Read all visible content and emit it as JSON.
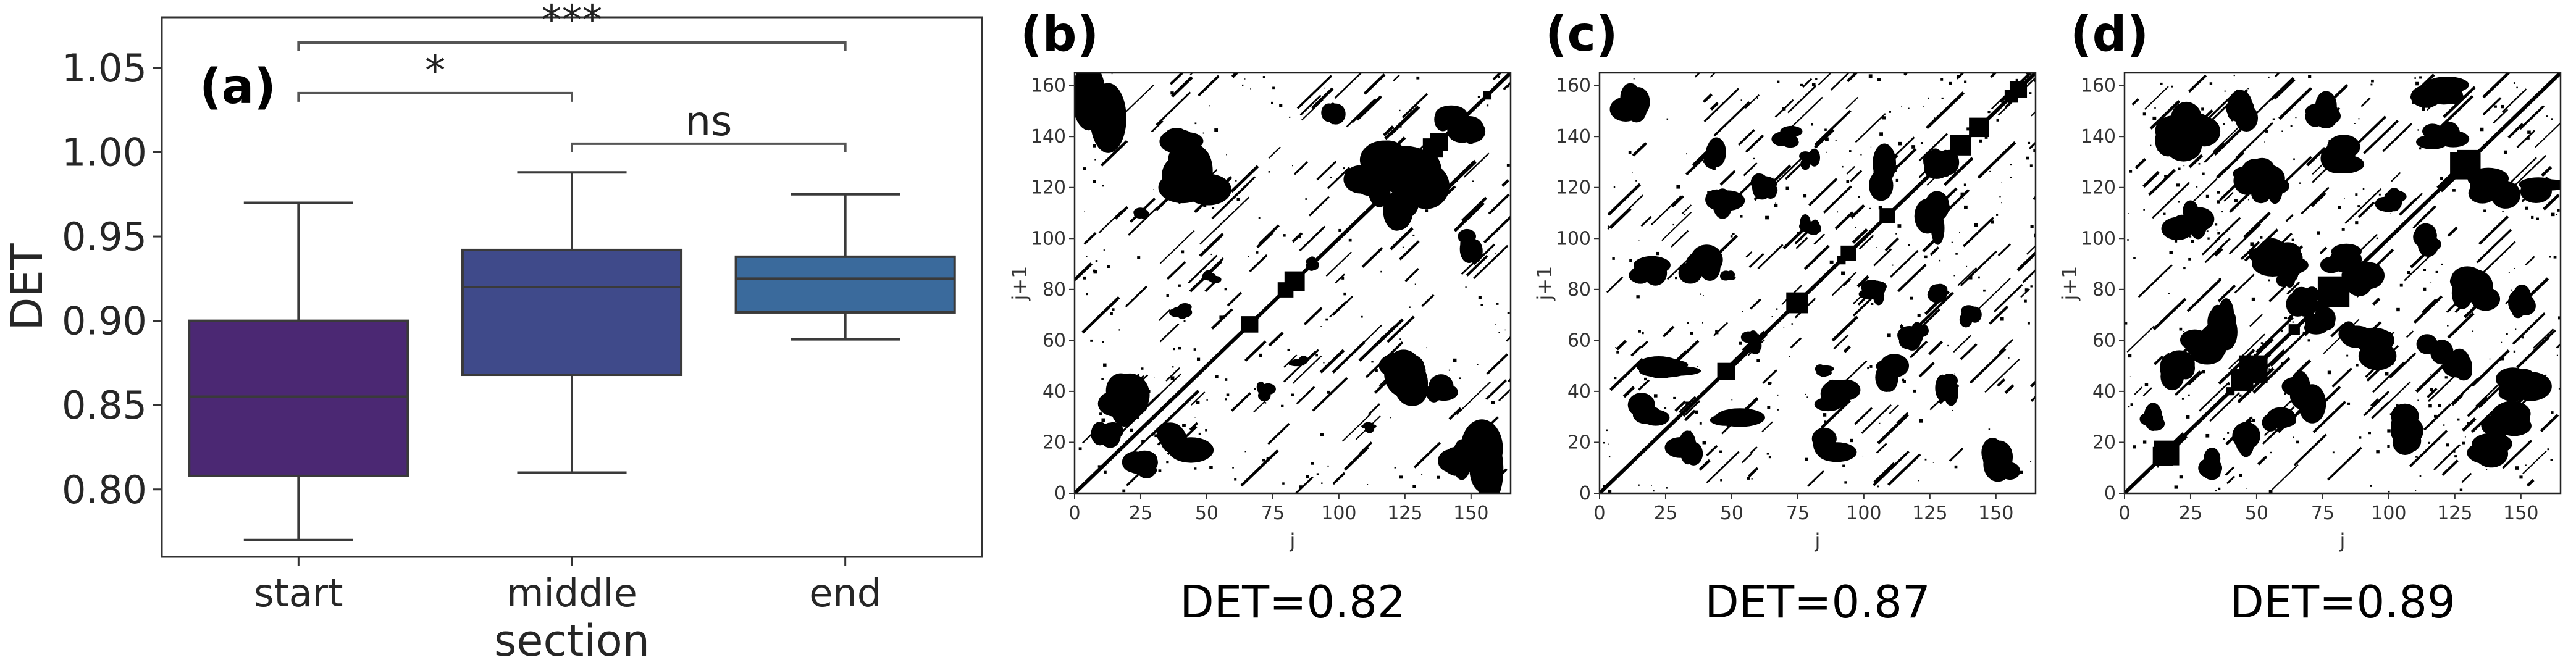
{
  "chart_data": [
    {
      "panel": "(a)",
      "type": "box",
      "xlabel": "section",
      "ylabel": "DET",
      "ylim": [
        0.76,
        1.08
      ],
      "yticks": [
        "0.80",
        "0.85",
        "0.90",
        "0.95",
        "1.00",
        "1.05"
      ],
      "categories": [
        "start",
        "middle",
        "end"
      ],
      "boxes": [
        {
          "category": "start",
          "whisker_low": 0.77,
          "q1": 0.808,
          "median": 0.855,
          "q3": 0.9,
          "whisker_high": 0.97,
          "color": "#4b2873"
        },
        {
          "category": "middle",
          "whisker_low": 0.81,
          "q1": 0.868,
          "median": 0.92,
          "q3": 0.942,
          "whisker_high": 0.988,
          "color": "#3f4a8a"
        },
        {
          "category": "end",
          "whisker_low": 0.889,
          "q1": 0.905,
          "median": 0.925,
          "q3": 0.938,
          "whisker_high": 0.975,
          "color": "#3a6a9c"
        }
      ],
      "significance": [
        {
          "from": "start",
          "to": "end",
          "label": "***",
          "y": 1.065
        },
        {
          "from": "start",
          "to": "middle",
          "label": "*",
          "y": 1.035
        },
        {
          "from": "middle",
          "to": "end",
          "label": "ns",
          "y": 1.005
        }
      ]
    },
    {
      "panel": "(b)",
      "type": "recurrence_plot",
      "xlabel": "j",
      "ylabel": "j+1",
      "xticks": [
        "0",
        "25",
        "50",
        "75",
        "100",
        "125",
        "150"
      ],
      "yticks": [
        "0",
        "20",
        "40",
        "60",
        "80",
        "100",
        "120",
        "140",
        "160"
      ],
      "caption": "DET=0.82"
    },
    {
      "panel": "(c)",
      "type": "recurrence_plot",
      "xlabel": "j",
      "ylabel": "j+1",
      "xticks": [
        "0",
        "25",
        "50",
        "75",
        "100",
        "125",
        "150"
      ],
      "yticks": [
        "0",
        "20",
        "40",
        "60",
        "80",
        "100",
        "120",
        "140",
        "160"
      ],
      "caption": "DET=0.87"
    },
    {
      "panel": "(d)",
      "type": "recurrence_plot",
      "xlabel": "j",
      "ylabel": "j+1",
      "xticks": [
        "0",
        "25",
        "50",
        "75",
        "100",
        "125",
        "150"
      ],
      "yticks": [
        "0",
        "20",
        "40",
        "60",
        "80",
        "100",
        "120",
        "140",
        "160"
      ],
      "caption": "DET=0.89"
    }
  ]
}
